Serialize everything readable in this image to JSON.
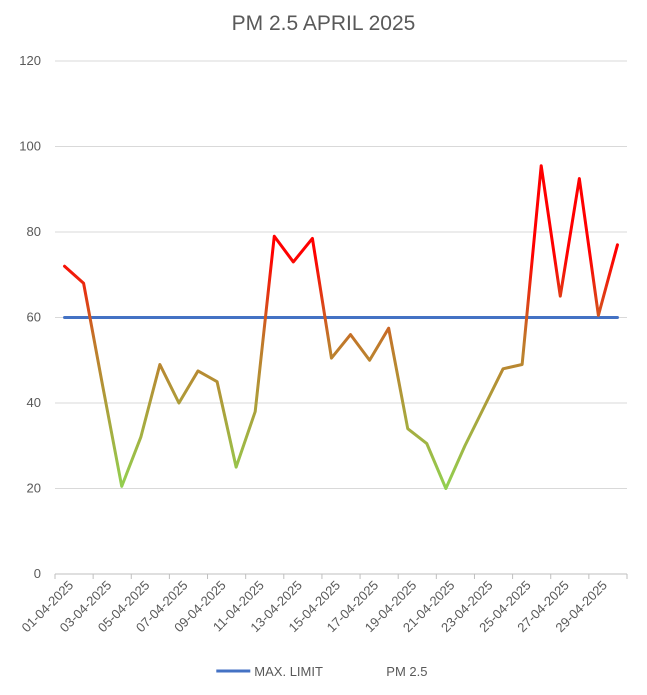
{
  "chart_data": {
    "type": "line",
    "title": "PM 2.5 APRIL 2025",
    "xlabel": "",
    "ylabel": "",
    "ylim": [
      0,
      120
    ],
    "yticks": [
      0,
      20,
      40,
      60,
      80,
      100,
      120
    ],
    "grid": true,
    "legend_position": "bottom",
    "x": [
      "01-04-2025",
      "02-04-2025",
      "03-04-2025",
      "04-04-2025",
      "05-04-2025",
      "06-04-2025",
      "07-04-2025",
      "08-04-2025",
      "09-04-2025",
      "10-04-2025",
      "11-04-2025",
      "12-04-2025",
      "13-04-2025",
      "14-04-2025",
      "15-04-2025",
      "16-04-2025",
      "17-04-2025",
      "18-04-2025",
      "19-04-2025",
      "20-04-2025",
      "21-04-2025",
      "22-04-2025",
      "23-04-2025",
      "24-04-2025",
      "25-04-2025",
      "26-04-2025",
      "27-04-2025",
      "28-04-2025",
      "29-04-2025",
      "30-04-2025"
    ],
    "x_tick_labels": [
      "01-04-2025",
      "03-04-2025",
      "05-04-2025",
      "07-04-2025",
      "09-04-2025",
      "11-04-2025",
      "13-04-2025",
      "15-04-2025",
      "17-04-2025",
      "19-04-2025",
      "21-04-2025",
      "23-04-2025",
      "25-04-2025",
      "27-04-2025",
      "29-04-2025"
    ],
    "series": [
      {
        "name": "MAX. LIMIT",
        "color": "#4472C4",
        "values": [
          60,
          60,
          60,
          60,
          60,
          60,
          60,
          60,
          60,
          60,
          60,
          60,
          60,
          60,
          60,
          60,
          60,
          60,
          60,
          60,
          60,
          60,
          60,
          60,
          60,
          60,
          60,
          60,
          60,
          60
        ]
      },
      {
        "name": "PM 2.5",
        "color": "#C00000",
        "gradient": {
          "high": "#FF0000",
          "mid": "#C0792A",
          "low": "#92D050"
        },
        "values": [
          72,
          68,
          44,
          20.5,
          32,
          49,
          40,
          47.5,
          45,
          25,
          38,
          79,
          73,
          78.5,
          50.5,
          56,
          50,
          57.5,
          34,
          30.5,
          20,
          30,
          39,
          48,
          49,
          95.5,
          65,
          92.5,
          60.5,
          77
        ]
      }
    ]
  }
}
